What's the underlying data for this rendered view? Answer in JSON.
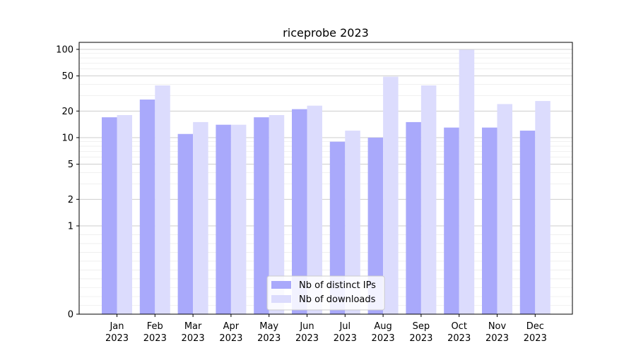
{
  "chart_data": {
    "type": "bar",
    "title": "riceprobe 2023",
    "xlabel": "",
    "ylabel": "",
    "y_scale": "symlog",
    "y_ticks": [
      0,
      1,
      2,
      5,
      10,
      20,
      50,
      100
    ],
    "y_tick_labels": [
      "0",
      "1",
      "2",
      "5",
      "10",
      "20",
      "50",
      "100"
    ],
    "ylim": [
      0,
      120
    ],
    "grid": true,
    "legend_position": "bottom-center",
    "categories": [
      [
        "Jan",
        "2023"
      ],
      [
        "Feb",
        "2023"
      ],
      [
        "Mar",
        "2023"
      ],
      [
        "Apr",
        "2023"
      ],
      [
        "May",
        "2023"
      ],
      [
        "Jun",
        "2023"
      ],
      [
        "Jul",
        "2023"
      ],
      [
        "Aug",
        "2023"
      ],
      [
        "Sep",
        "2023"
      ],
      [
        "Oct",
        "2023"
      ],
      [
        "Nov",
        "2023"
      ],
      [
        "Dec",
        "2023"
      ]
    ],
    "series": [
      {
        "name": "Nb of distinct IPs",
        "color": "#a9a9fb",
        "values": [
          17,
          27,
          11,
          14,
          17,
          21,
          9,
          10,
          15,
          13,
          13,
          12
        ]
      },
      {
        "name": "Nb of downloads",
        "color": "#dcdcfd",
        "values": [
          18,
          39,
          15,
          14,
          18,
          23,
          12,
          49,
          39,
          99,
          24,
          26
        ]
      }
    ]
  }
}
